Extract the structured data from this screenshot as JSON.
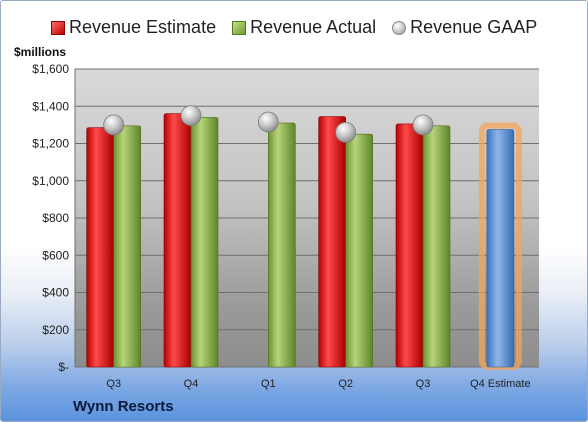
{
  "company": "Wynn Resorts",
  "chart_data": {
    "type": "bar",
    "ylabel": "$millions",
    "categories": [
      "Q3",
      "Q4",
      "Q1",
      "Q2",
      "Q3",
      "Q4 Estimate"
    ],
    "ylim": [
      0,
      1600
    ],
    "yticks": [
      {
        "value": 0,
        "label": "$-"
      },
      {
        "value": 200,
        "label": "$200"
      },
      {
        "value": 400,
        "label": "$400"
      },
      {
        "value": 600,
        "label": "$600"
      },
      {
        "value": 800,
        "label": "$800"
      },
      {
        "value": 1000,
        "label": "$1,000"
      },
      {
        "value": 1200,
        "label": "$1,200"
      },
      {
        "value": 1400,
        "label": "$1,400"
      },
      {
        "value": 1600,
        "label": "$1,600"
      }
    ],
    "grid": true,
    "legend_position": "top",
    "series": [
      {
        "name": "Revenue Estimate",
        "kind": "bar",
        "color": "#d91e1e",
        "values": [
          1285,
          1360,
          null,
          1345,
          1305,
          null
        ]
      },
      {
        "name": "Revenue Actual",
        "kind": "bar",
        "color": "#86b042",
        "values": [
          1295,
          1340,
          1310,
          1250,
          1295,
          null
        ]
      },
      {
        "name": "Revenue GAAP",
        "kind": "marker",
        "color": "#bdbdbd",
        "values": [
          1300,
          1350,
          1315,
          1260,
          1300,
          null
        ]
      },
      {
        "name": "Q4 Estimate",
        "kind": "highlight-bar",
        "color": "#5b8fd1",
        "values": [
          null,
          null,
          null,
          null,
          null,
          1275
        ]
      }
    ]
  }
}
